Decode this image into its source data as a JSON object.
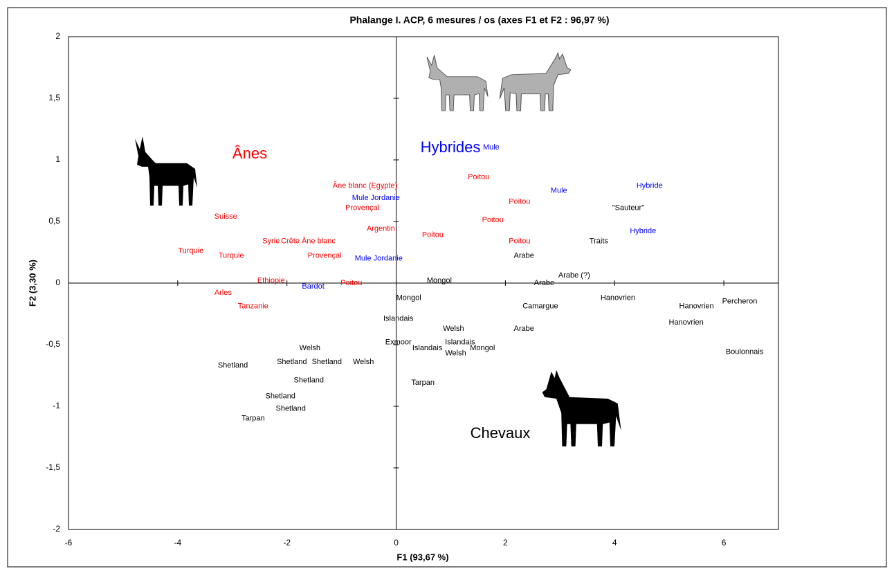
{
  "chart_data": {
    "type": "scatter",
    "title": "Phalange I. ACP, 6 mesures / os (axes F1 et F2 : 96,97 %)",
    "x_label": "F1 (93,67 %)",
    "y_label": "F2 (3,30 %)",
    "xlim": [
      -6,
      7
    ],
    "ylim": [
      -2,
      2
    ],
    "xticks": [
      -6,
      -4,
      -2,
      0,
      2,
      4,
      6
    ],
    "yticks": [
      -2,
      {
        "value": -1.5,
        "label": "-1,5"
      },
      -1,
      {
        "value": -0.5,
        "label": "-0,5"
      },
      0,
      {
        "value": 0.5,
        "label": "0,5"
      },
      1,
      {
        "value": 1.5,
        "label": "1,5"
      },
      2
    ],
    "series": [
      {
        "name": "Ânes",
        "color": "#ff0000",
        "labels": [
          "Âne blanc (Egypte)",
          "Provençal",
          "Argentin",
          "Suisse",
          "Syrie",
          "Crête Âne blanc",
          "Turquie",
          "Turquie",
          "Provençal",
          "Ethiopie",
          "Poitou",
          "Arles",
          "Tanzanie",
          "Poitou",
          "Poitou",
          "Poitou",
          "Poitou",
          "Poitou"
        ],
        "x": [
          -0.57,
          -0.62,
          -0.28,
          -3.12,
          -2.29,
          -1.61,
          -3.76,
          -3.02,
          -1.31,
          -2.29,
          -0.82,
          -3.17,
          -2.62,
          1.51,
          2.26,
          1.77,
          0.67,
          2.26
        ],
        "values": [
          0.79,
          0.61,
          0.44,
          0.54,
          0.34,
          0.34,
          0.26,
          0.22,
          0.22,
          0.02,
          0.0,
          -0.08,
          -0.19,
          0.86,
          0.66,
          0.51,
          0.39,
          0.34
        ]
      },
      {
        "name": "Hybrides",
        "color": "#0000ff",
        "labels": [
          "Mule",
          "Mule",
          "Hybride",
          "Hybride",
          "Mule Jordanie",
          "Mule Jordanie",
          "Bardot"
        ],
        "x": [
          1.74,
          2.98,
          4.64,
          4.52,
          -0.37,
          -0.32,
          -1.52
        ],
        "values": [
          1.1,
          0.75,
          0.79,
          0.42,
          0.69,
          0.2,
          -0.03
        ]
      },
      {
        "name": "Chevaux",
        "color": "#000000",
        "labels": [
          "\"Sauteur\"",
          "Traits",
          "Arabe",
          "Arabe (?)",
          "Arabe",
          "Mongol",
          "Mongol",
          "Hanovrien",
          "Camargue",
          "Hanovrien",
          "Percheron",
          "Islandais",
          "Welsh",
          "Arabe",
          "Hanovrien",
          "Exmoor",
          "Islandais",
          "Islandais",
          "Welsh",
          "Mongol",
          "Boulonnais",
          "Welsh",
          "Shetland",
          "Shetland",
          "Welsh",
          "Shetland",
          "Shetland",
          "Tarpan",
          "Shetland",
          "Shetland",
          "Tarpan"
        ],
        "x": [
          4.25,
          3.71,
          2.34,
          3.26,
          2.71,
          0.79,
          0.23,
          4.06,
          2.64,
          5.5,
          6.29,
          0.04,
          1.05,
          2.34,
          5.31,
          0.04,
          1.17,
          0.57,
          1.09,
          1.58,
          6.38,
          -1.58,
          -1.91,
          -1.27,
          -0.6,
          -2.99,
          -1.6,
          0.49,
          -2.12,
          -1.93,
          -2.62
        ],
        "values": [
          0.61,
          0.34,
          0.22,
          0.06,
          0.0,
          0.02,
          -0.12,
          -0.12,
          -0.19,
          -0.19,
          -0.15,
          -0.29,
          -0.37,
          -0.37,
          -0.32,
          -0.48,
          -0.48,
          -0.53,
          -0.57,
          -0.53,
          -0.56,
          -0.53,
          -0.64,
          -0.64,
          -0.64,
          -0.67,
          -0.79,
          -0.81,
          -0.92,
          -1.02,
          -1.1
        ]
      }
    ]
  }
}
